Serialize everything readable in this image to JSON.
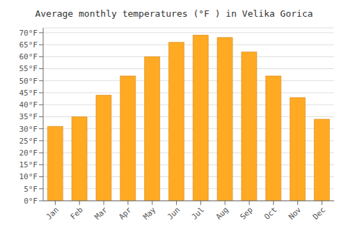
{
  "chart_data": {
    "type": "bar",
    "title": "Average monthly temperatures (°F ) in Velika Gorica",
    "categories": [
      "Jan",
      "Feb",
      "Mar",
      "Apr",
      "May",
      "Jun",
      "Jul",
      "Aug",
      "Sep",
      "Oct",
      "Nov",
      "Dec"
    ],
    "values": [
      31,
      35,
      44,
      52,
      60,
      66,
      69,
      68,
      62,
      52,
      43,
      34
    ],
    "color": "#FFAA22",
    "ylim": [
      0,
      72
    ],
    "yticks": [
      {
        "value": 0,
        "label": "0°F"
      },
      {
        "value": 5,
        "label": "5°F"
      },
      {
        "value": 10,
        "label": "10°F"
      },
      {
        "value": 15,
        "label": "15°F"
      },
      {
        "value": 20,
        "label": "20°F"
      },
      {
        "value": 25,
        "label": "25°F"
      },
      {
        "value": 30,
        "label": "30°F"
      },
      {
        "value": 35,
        "label": "35°F"
      },
      {
        "value": 40,
        "label": "40°F"
      },
      {
        "value": 45,
        "label": "45°F"
      },
      {
        "value": 50,
        "label": "50°F"
      },
      {
        "value": 55,
        "label": "55°F"
      },
      {
        "value": 60,
        "label": "60°F"
      },
      {
        "value": 65,
        "label": "65°F"
      },
      {
        "value": 70,
        "label": "70°F"
      }
    ],
    "grid": true
  }
}
